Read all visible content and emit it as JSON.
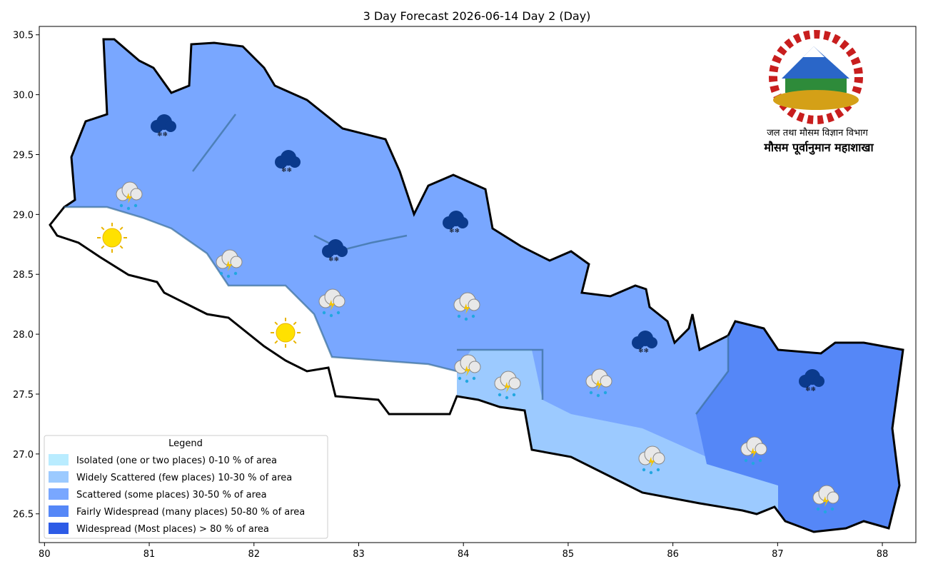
{
  "title": "3 Day Forecast 2026-06-14 Day 2 (Day)",
  "xlim": [
    79.95,
    88.32
  ],
  "ylim": [
    26.26,
    30.57
  ],
  "xticks": [
    80,
    81,
    82,
    83,
    84,
    85,
    86,
    87,
    88
  ],
  "yticks": [
    {
      "value": 26.5,
      "label": "26.5"
    },
    {
      "value": 27,
      "label": "27.0"
    },
    {
      "value": 27.5,
      "label": "27.5"
    },
    {
      "value": 28,
      "label": "28.0"
    },
    {
      "value": 28.5,
      "label": "28.5"
    },
    {
      "value": 29,
      "label": "29.0"
    },
    {
      "value": 29.5,
      "label": "29.5"
    },
    {
      "value": 30,
      "label": "30.0"
    },
    {
      "value": 30.5,
      "label": "30.5"
    }
  ],
  "legend": {
    "title": "Legend",
    "items": [
      {
        "label": "Isolated (one or two places)  0-10 % of area",
        "color": "#b9ecff"
      },
      {
        "label": "Widely Scattered (few places)  10-30 % of area",
        "color": "#9ccaff"
      },
      {
        "label": "Scattered (some places)  30-50 % of area",
        "color": "#79a7ff"
      },
      {
        "label": "Fairly Widespread (many places)  50-80 % of area",
        "color": "#5587f7"
      },
      {
        "label": "Widespread (Most places) > 80 % of area",
        "color": "#2d5be6"
      }
    ]
  },
  "logo": {
    "line1": "जल तथा मौसम विज्ञान विभाग",
    "line2": "मौसम पूर्वानुमान महाशाखा"
  }
}
